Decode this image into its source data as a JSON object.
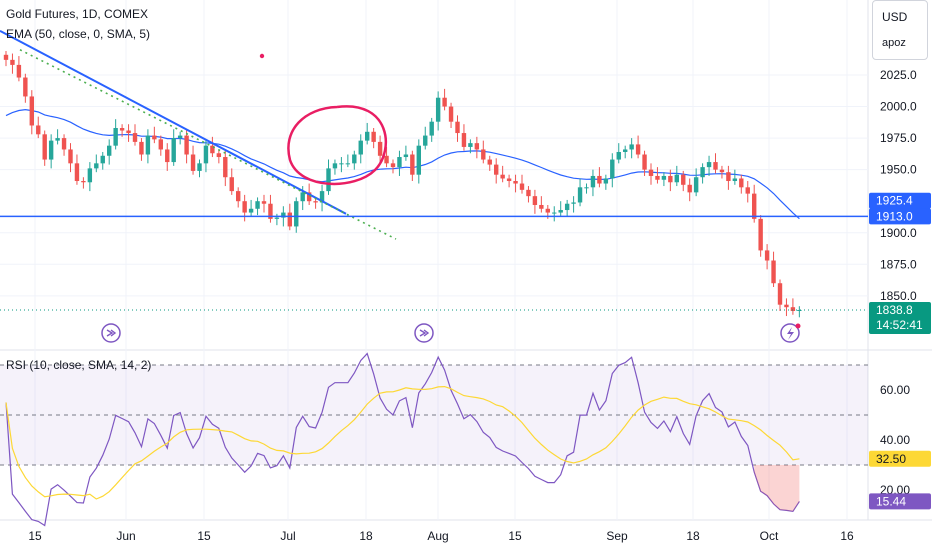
{
  "legend": {
    "symbol_line": "Gold Futures, 1D, COMEX",
    "ema_line": "EMA (50, close, 0, SMA, 5)",
    "rsi_line": "RSI (10, close, SMA, 14, 2)"
  },
  "currency": {
    "label": "USD",
    "user": "apoz"
  },
  "price_scale": {
    "ticks": [
      "2025.0",
      "2000.0",
      "1975.0",
      "1950.0",
      "1900.0",
      "1875.0",
      "1850.0"
    ]
  },
  "rsi_scale": {
    "ticks": [
      "60.00",
      "40.00",
      "20.00"
    ]
  },
  "time_axis": {
    "labels": [
      "15",
      "Jun",
      "15",
      "Jul",
      "18",
      "Aug",
      "15",
      "Sep",
      "18",
      "Oct",
      "16"
    ]
  },
  "tags": {
    "ema_value": "1925.4",
    "line_value": "1913.0",
    "last_price": "1838.8",
    "countdown": "14:52:41",
    "rsi_ma_value": "32.50",
    "rsi_value": "15.44"
  },
  "colors": {
    "up": "#26a69a",
    "down": "#ef5350",
    "ema": "#2962ff",
    "trendline": "#2962ff",
    "rsi": "#7e57c2",
    "rsi_ma": "#fdd835",
    "circle": "#e91e63",
    "last_price": "#089981"
  },
  "chart_data": {
    "type": "candlestick",
    "symbol": "Gold Futures",
    "interval": "1D",
    "exchange": "COMEX",
    "price_range": [
      1812,
      2050
    ],
    "closes": [
      2037,
      2033,
      2023,
      2008,
      1985,
      1978,
      1958,
      1973,
      1975,
      1966,
      1955,
      1941,
      1940,
      1951,
      1955,
      1961,
      1969,
      1983,
      1981,
      1979,
      1972,
      1962,
      1977,
      1974,
      1966,
      1956,
      1975,
      1977,
      1962,
      1949,
      1955,
      1969,
      1963,
      1960,
      1944,
      1933,
      1925,
      1916,
      1919,
      1925,
      1923,
      1911,
      1912,
      1916,
      1905,
      1925,
      1932,
      1925,
      1924,
      1933,
      1951,
      1955,
      1955,
      1955,
      1962,
      1973,
      1980,
      1972,
      1961,
      1955,
      1952,
      1960,
      1962,
      1946,
      1969,
      1977,
      1988,
      2007,
      2000,
      1988,
      1979,
      1968,
      1971,
      1966,
      1958,
      1954,
      1946,
      1943,
      1941,
      1939,
      1934,
      1929,
      1922,
      1919,
      1916,
      1916,
      1918,
      1923,
      1924,
      1936,
      1936,
      1945,
      1939,
      1943,
      1958,
      1964,
      1966,
      1970,
      1962,
      1950,
      1945,
      1942,
      1945,
      1940,
      1946,
      1938,
      1932,
      1944,
      1952,
      1956,
      1950,
      1948,
      1941,
      1943,
      1936,
      1931,
      1911,
      1886,
      1878,
      1860,
      1843,
      1841,
      1838,
      1838.8
    ],
    "ema": {
      "name": "EMA",
      "period": 50,
      "last": 1925.4
    },
    "horizontal_line": 1913.0,
    "last_price": 1838.8,
    "rsi": {
      "name": "RSI",
      "period": 10,
      "range": [
        0,
        80
      ],
      "bands": [
        70,
        50,
        30
      ],
      "last": 15.44,
      "ma_last": 32.5
    }
  }
}
